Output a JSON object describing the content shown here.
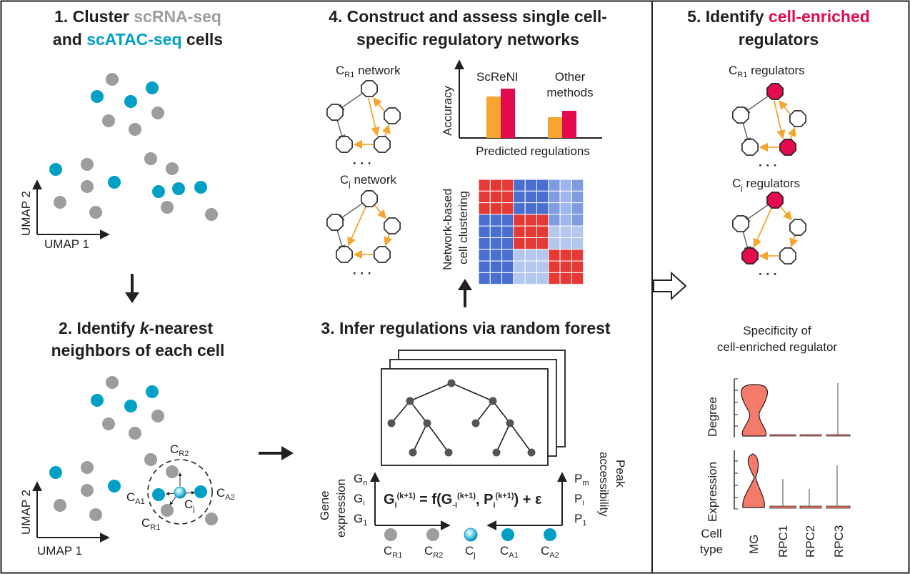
{
  "colors": {
    "rna": "#9d9d9c",
    "atac": "#00a0c6",
    "enriched": "#e30b4d",
    "orange": "#f6a530",
    "matrix_red": "#e53935",
    "matrix_blue": "#4a6fd0",
    "matrix_light": "#b3c8ee",
    "violin": "#f47a6a",
    "node_dark": "#555555"
  },
  "panel1": {
    "title_num": "1. Cluster ",
    "title_rna": "scRNA-seq",
    "title_and": "and ",
    "title_atac": "scATAC-seq",
    "title_cells": " cells",
    "xaxis": "UMAP 1",
    "yaxis": "UMAP 2"
  },
  "panel2": {
    "title_a": "2. Identify ",
    "title_k": "k",
    "title_b": "-nearest",
    "title_line2": "neighbors of each cell",
    "xaxis": "UMAP 1",
    "yaxis": "UMAP 2",
    "labels": {
      "cr2_main": "C",
      "cr2_sub": "R2",
      "ca1_main": "C",
      "ca1_sub": "A1",
      "ca2_main": "C",
      "ca2_sub": "A2",
      "cj_main": "C",
      "cj_sub": "j",
      "cr1_main": "C",
      "cr1_sub": "R1"
    }
  },
  "panel3": {
    "title": "3. Infer regulations via random forest",
    "gene_expression_1": "Gene",
    "gene_expression_2": "expression",
    "peak_1": "Peak",
    "peak_2": "accessibility",
    "g_labels": [
      {
        "main": "G",
        "sub": "n"
      },
      {
        "main": "G",
        "sub": "i"
      },
      {
        "main": "G",
        "sub": "1"
      }
    ],
    "p_labels": [
      {
        "main": "P",
        "sub": "m"
      },
      {
        "main": "P",
        "sub": "i"
      },
      {
        "main": "P",
        "sub": "1"
      }
    ],
    "formula": {
      "g": "G",
      "g_sub": "i",
      "g_sup": "(k+1)",
      "eq": " = f(G",
      "g2_sub": "-i",
      "g2_sup": "(k+1)",
      "comma": ", P",
      "p_sub": "i",
      "p_sup": "(k+1)",
      "end": ") + ε"
    },
    "cells": [
      {
        "main": "C",
        "sub": "R1"
      },
      {
        "main": "C",
        "sub": "R2"
      },
      {
        "main": "C",
        "sub": "j"
      },
      {
        "main": "C",
        "sub": "A1"
      },
      {
        "main": "C",
        "sub": "A2"
      }
    ]
  },
  "panel4": {
    "title_line1": "4. Construct and assess single cell-",
    "title_line2": "specific regulatory networks",
    "cr1_net_main": "C",
    "cr1_net_sub": "R1",
    "cr1_net_text": " network",
    "cj_net_main": "C",
    "cj_net_sub": "j",
    "cj_net_text": " network",
    "dots": "· · ·",
    "accuracy": "Accuracy",
    "screni": "ScReNI",
    "other_1": "Other",
    "other_2": "methods",
    "predicted": "Predicted regulations",
    "cluster_1": "Network-based",
    "cluster_2": "cell clustering"
  },
  "panel5": {
    "title_a": "5. Identify ",
    "title_b": "cell-enriched",
    "title_line2": "regulators",
    "cr1_main": "C",
    "cr1_sub": "R1",
    "cr1_text": " regulators",
    "cj_main": "C",
    "cj_sub": "j",
    "cj_text": " regulators",
    "dots": "· · ·",
    "specificity_1": "Specificity of",
    "specificity_2": "cell-enriched regulator",
    "degree": "Degree",
    "expression": "Expression",
    "cell_1": "Cell",
    "cell_2": "type",
    "cell_types": [
      "MG",
      "RPC1",
      "RPC2",
      "RPC3"
    ]
  }
}
